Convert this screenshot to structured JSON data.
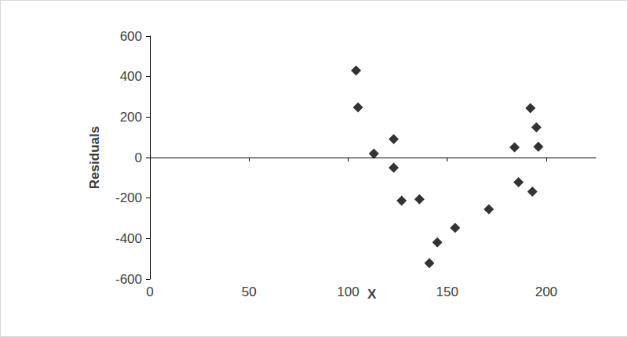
{
  "chart_data": {
    "type": "scatter",
    "x_label": "X",
    "y_label": "Residuals",
    "x": [
      104,
      105,
      113,
      123,
      123,
      127,
      136,
      141,
      145,
      154,
      171,
      184,
      186,
      192,
      193,
      195,
      196
    ],
    "values": [
      430,
      248,
      19,
      91,
      -50,
      -213,
      -206,
      -522,
      -419,
      -347,
      -255,
      50,
      -122,
      244,
      -168,
      149,
      53
    ],
    "color": "#000000",
    "marker": "diamond",
    "xlim": [
      0,
      225
    ],
    "xticks": [
      0,
      50,
      100,
      150,
      200
    ],
    "ylim": [
      -600,
      600
    ],
    "yticks": [
      -600,
      -400,
      -200,
      0,
      200,
      400,
      600
    ],
    "grid": false
  }
}
